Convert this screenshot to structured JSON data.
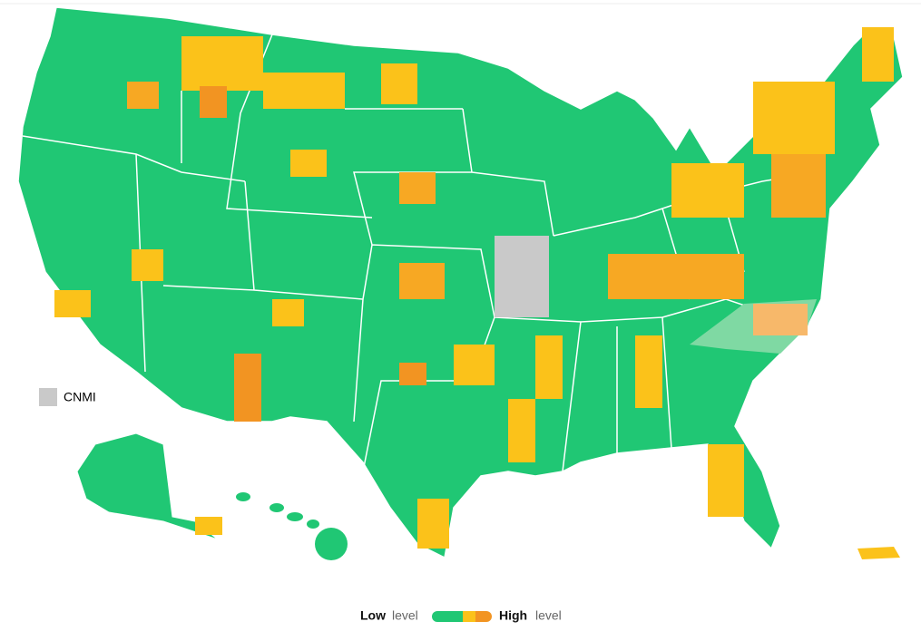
{
  "cnmi": {
    "label": "CNMI"
  },
  "legend": {
    "low": {
      "bold": "Low",
      "rest": "level"
    },
    "high": {
      "bold": "High",
      "rest": "level"
    }
  }
}
